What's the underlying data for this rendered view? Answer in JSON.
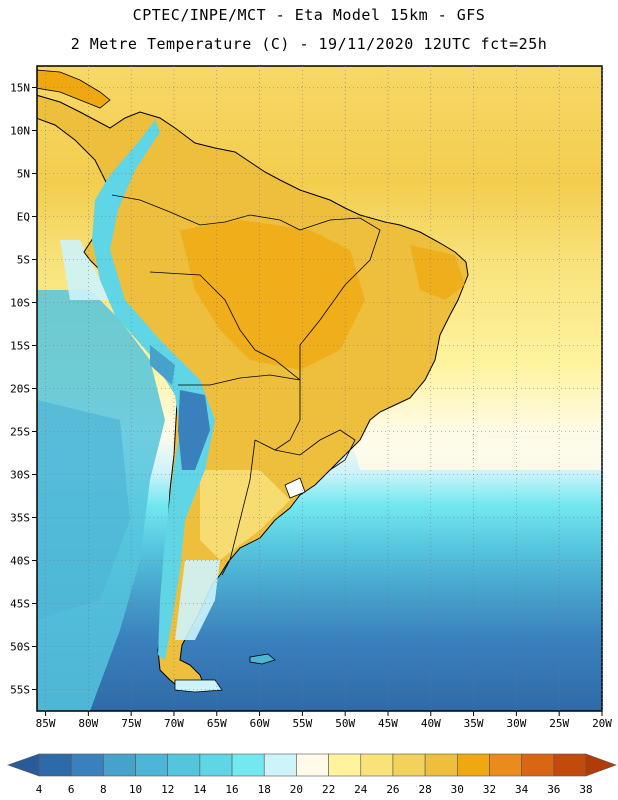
{
  "title": {
    "line1": "CPTEC/INPE/MCT -  Eta Model 15km - GFS",
    "line2": "2 Metre Temperature (C) - 19/11/2020 12UTC fct=25h"
  },
  "map": {
    "lat_labels": [
      "15N",
      "10N",
      "5N",
      "EQ",
      "5S",
      "10S",
      "15S",
      "20S",
      "25S",
      "30S",
      "35S",
      "40S",
      "45S",
      "50S",
      "55S"
    ],
    "lon_labels": [
      "85W",
      "80W",
      "75W",
      "70W",
      "65W",
      "60W",
      "55W",
      "50W",
      "45W",
      "40W",
      "35W",
      "30W",
      "25W",
      "20W"
    ],
    "lat_range": [
      17.5,
      -57.5
    ],
    "lon_range": [
      -86,
      -20
    ]
  },
  "colorbar": {
    "labels": [
      "4",
      "6",
      "8",
      "10",
      "12",
      "14",
      "16",
      "18",
      "20",
      "22",
      "24",
      "26",
      "28",
      "30",
      "32",
      "34",
      "36",
      "38"
    ],
    "colors": [
      "#2f6aa8",
      "#3a80bd",
      "#46a1cb",
      "#4fb5d6",
      "#55c4dd",
      "#5fd5e6",
      "#73e8f0",
      "#cdf3fb",
      "#fffbe8",
      "#fff39e",
      "#f8e27a",
      "#f2d25a",
      "#edbf3c",
      "#f0a810",
      "#ea8c1c",
      "#d96614",
      "#c24a0c"
    ],
    "low_color": "#2a5a9a",
    "high_color": "#b33b08"
  }
}
